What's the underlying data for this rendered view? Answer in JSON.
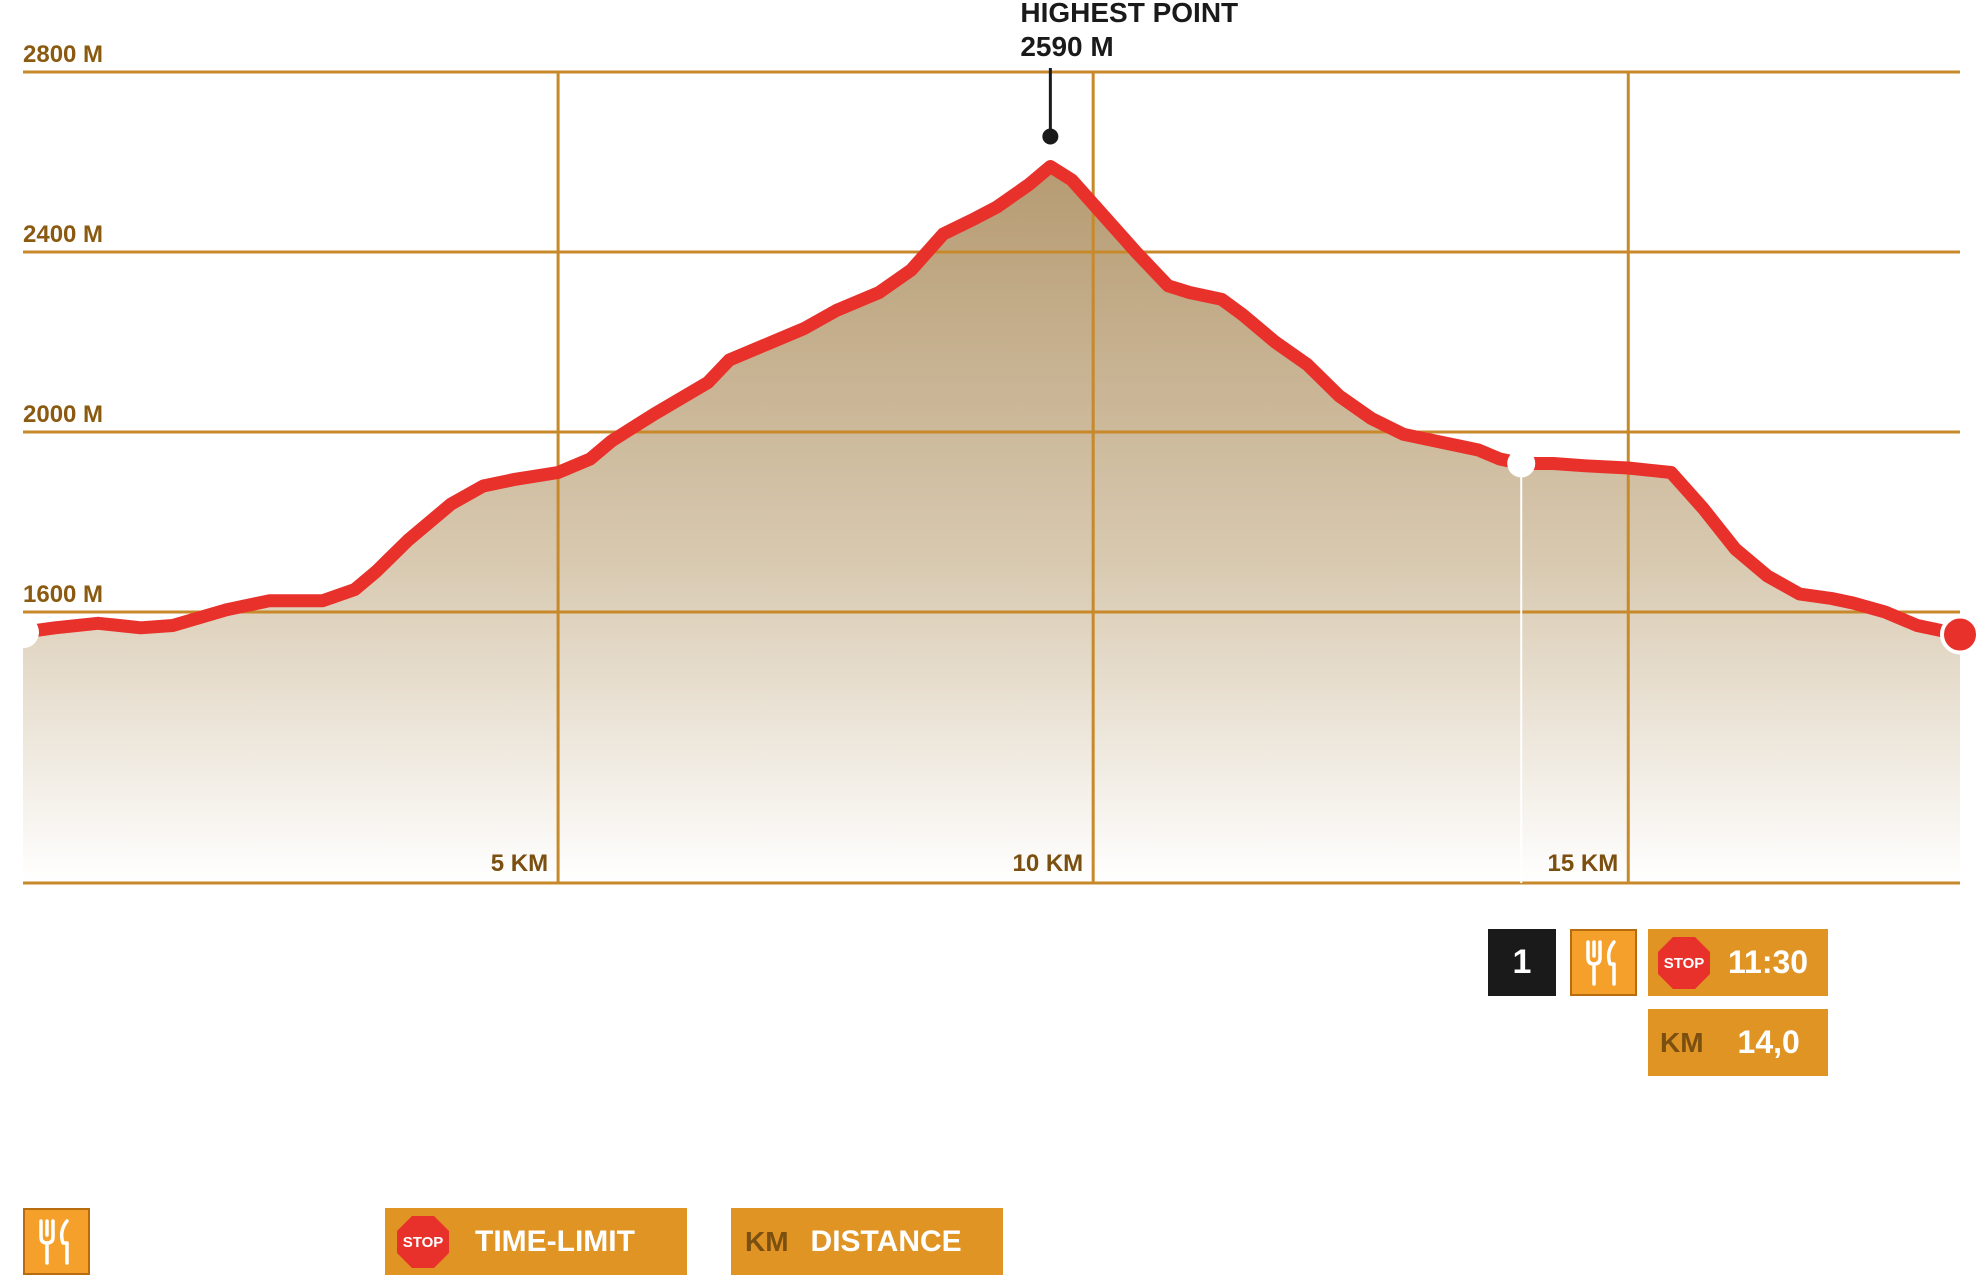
{
  "chart_data": {
    "type": "area",
    "title": "",
    "xlabel": "",
    "ylabel": "",
    "ylim": [
      1100,
      2800
    ],
    "xlim": [
      0,
      18.1
    ],
    "y_ticks": [
      1600,
      2000,
      2400,
      2800
    ],
    "y_tick_labels": [
      "1600 M",
      "2000 M",
      "2400 M",
      "2800 M"
    ],
    "x_ticks": [
      5,
      10,
      15
    ],
    "x_tick_labels": [
      "5 KM",
      "10 KM",
      "15 KM"
    ],
    "grid": true,
    "colors": {
      "line": "#e8312b",
      "fill_top": "#b69b72",
      "grid": "#c8892a"
    },
    "series": [
      {
        "x": [
          0,
          0.3,
          0.7,
          0.9,
          1.1,
          1.4,
          1.9,
          2.3,
          2.8,
          3.1,
          3.3,
          3.6,
          4.0,
          4.3,
          4.6,
          5.0,
          5.3,
          5.5,
          5.9,
          6.4,
          6.6,
          7.0,
          7.3,
          7.6,
          8.0,
          8.3,
          8.6,
          8.9,
          9.1,
          9.4,
          9.6,
          9.8,
          10.1,
          10.4,
          10.7,
          10.9,
          11.2,
          11.4,
          11.7,
          12.0,
          12.3,
          12.6,
          12.9,
          13.1,
          13.4,
          13.6,
          13.8,
          14.0,
          14.3,
          14.6,
          15.0,
          15.4,
          15.7,
          16.0,
          16.3,
          16.6,
          16.9,
          17.1,
          17.4,
          17.7,
          18.1
        ],
        "y": [
          1555,
          1565,
          1575,
          1570,
          1565,
          1570,
          1605,
          1625,
          1625,
          1650,
          1690,
          1760,
          1840,
          1880,
          1895,
          1910,
          1940,
          1980,
          2040,
          2110,
          2160,
          2200,
          2230,
          2270,
          2310,
          2360,
          2440,
          2475,
          2500,
          2550,
          2590,
          2560,
          2480,
          2400,
          2325,
          2310,
          2295,
          2260,
          2200,
          2150,
          2080,
          2030,
          1995,
          1985,
          1970,
          1960,
          1940,
          1930,
          1930,
          1925,
          1920,
          1910,
          1830,
          1740,
          1680,
          1640,
          1630,
          1620,
          1600,
          1570,
          1550
        ]
      }
    ],
    "annotation": {
      "title": "HIGHEST POINT",
      "value_label": "2590 M",
      "x": 9.6,
      "y": 2590
    },
    "checkpoint": {
      "x": 14.0,
      "y": 1930
    }
  },
  "checkpoint_info": {
    "number": "1",
    "food_icon": "fork-knife-icon",
    "stop_text": "STOP",
    "time_limit": "11:30",
    "km_label": "KM",
    "km_value": "14,0"
  },
  "legend": {
    "food_icon": "fork-knife-icon",
    "stop_text": "STOP",
    "time_limit_label": "TIME-LIMIT",
    "km_label": "KM",
    "distance_label": "DISTANCE"
  }
}
